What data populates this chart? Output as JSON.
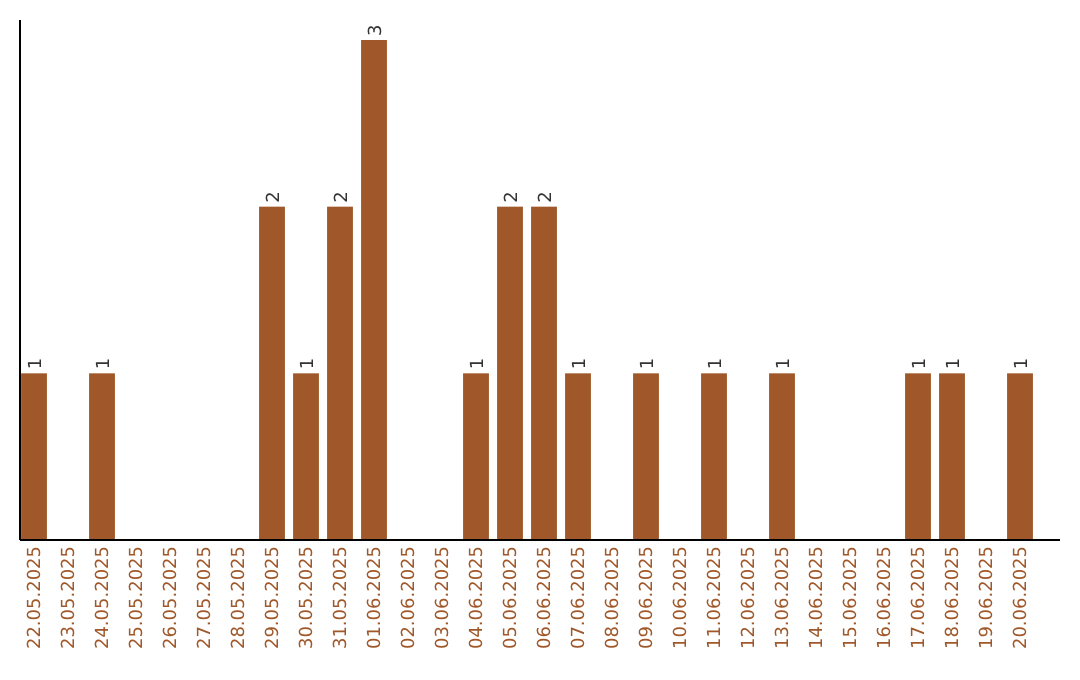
{
  "chart_data": {
    "type": "bar",
    "categories": [
      "22.05.2025",
      "23.05.2025",
      "24.05.2025",
      "25.05.2025",
      "26.05.2025",
      "27.05.2025",
      "28.05.2025",
      "29.05.2025",
      "30.05.2025",
      "31.05.2025",
      "01.06.2025",
      "02.06.2025",
      "03.06.2025",
      "04.06.2025",
      "05.06.2025",
      "06.06.2025",
      "07.06.2025",
      "08.06.2025",
      "09.06.2025",
      "10.06.2025",
      "11.06.2025",
      "12.06.2025",
      "13.06.2025",
      "14.06.2025",
      "15.06.2025",
      "16.06.2025",
      "17.06.2025",
      "18.06.2025",
      "19.06.2025",
      "20.06.2025"
    ],
    "values": [
      1,
      0,
      1,
      0,
      0,
      0,
      0,
      2,
      1,
      2,
      3,
      0,
      0,
      1,
      2,
      2,
      1,
      0,
      1,
      0,
      1,
      0,
      1,
      0,
      0,
      0,
      1,
      1,
      0,
      1
    ],
    "value_labels": [
      "1",
      null,
      "1",
      null,
      null,
      null,
      null,
      "2",
      "1",
      "2",
      "3",
      null,
      null,
      "1",
      "2",
      "2",
      "1",
      null,
      "1",
      null,
      "1",
      null,
      "1",
      null,
      null,
      null,
      "1",
      "1",
      null,
      "1"
    ],
    "color": "#a0582a"
  }
}
